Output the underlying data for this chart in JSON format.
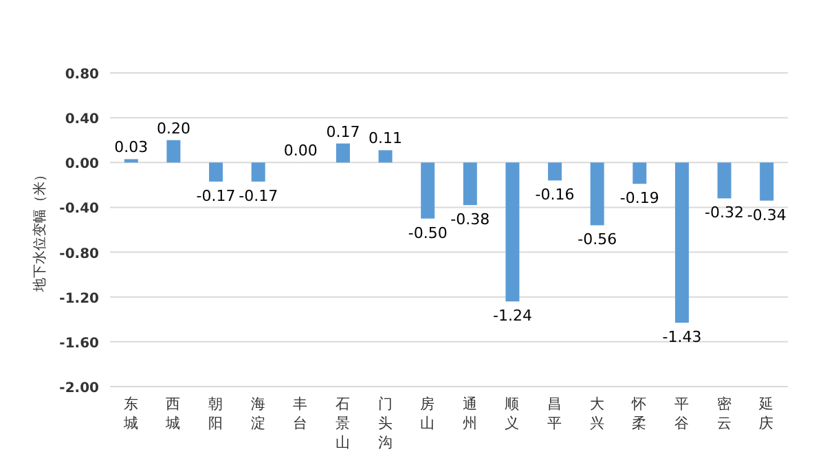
{
  "chart_data": {
    "type": "bar",
    "ylabel": "地下水位变幅（米）",
    "categories": [
      "东城",
      "西城",
      "朝阳",
      "海淀",
      "丰台",
      "石景山",
      "门头沟",
      "房山",
      "通州",
      "顺义",
      "昌平",
      "大兴",
      "怀柔",
      "平谷",
      "密云",
      "延庆"
    ],
    "series": [
      {
        "color": "#5b9bd5",
        "values": [
          0.03,
          0.2,
          -0.17,
          -0.17,
          0.0,
          0.17,
          0.11,
          -0.5,
          -0.38,
          -1.24,
          -0.16,
          -0.56,
          -0.19,
          -1.43,
          -0.32,
          -0.34
        ],
        "value_labels": [
          "0.03",
          "0.20",
          "-0.17",
          "-0.17",
          "0.00",
          "0.17",
          "0.11",
          "-0.50",
          "-0.38",
          "-1.24",
          "-0.16",
          "-0.56",
          "-0.19",
          "-1.43",
          "-0.32",
          "-0.34"
        ]
      }
    ],
    "ylim": [
      -2.0,
      0.8
    ],
    "yticks": [
      {
        "value": 0.8,
        "label": "0.80"
      },
      {
        "value": 0.4,
        "label": "0.40"
      },
      {
        "value": 0,
        "label": "0.00"
      },
      {
        "value": -0.4,
        "label": "-0.40"
      },
      {
        "value": -0.8,
        "label": "-0.80"
      },
      {
        "value": -1.2,
        "label": "-1.20"
      },
      {
        "value": -1.6,
        "label": "-1.60"
      },
      {
        "value": -2.0,
        "label": "-2.00"
      }
    ],
    "grid": "y"
  }
}
